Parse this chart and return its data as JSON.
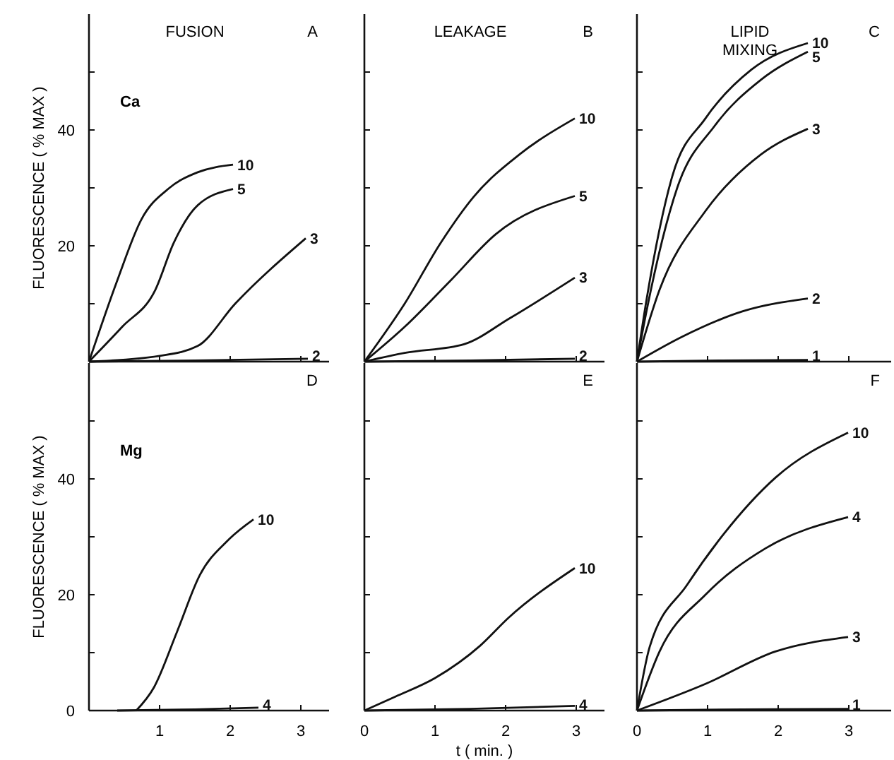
{
  "chart_data": [
    {
      "type": "line",
      "title": "FUSION",
      "ylabel": "FLUORESCENCE ( % MAX )",
      "annotations": [
        "A",
        "Ca"
      ],
      "xlim": [
        0,
        3.4
      ],
      "ylim": [
        0,
        60
      ],
      "xticks": [
        0,
        1,
        2,
        3
      ],
      "yticks": [
        {
          "value": 0,
          "label": null
        },
        {
          "value": 10,
          "label": null
        },
        20,
        {
          "value": 30,
          "label": null
        },
        40,
        {
          "value": 50,
          "label": null
        }
      ],
      "tick_labels": "y",
      "line_style": "solid",
      "series": [
        {
          "name": "10",
          "color": "#111111",
          "x": [
            0,
            0.4,
            0.74,
            1.14,
            1.54,
            2.04
          ],
          "values": [
            0,
            14,
            24.5,
            30,
            32.7,
            34
          ]
        },
        {
          "name": "5",
          "color": "#111111",
          "x": [
            0,
            0.47,
            0.94,
            1.2,
            1.54,
            2.04
          ],
          "values": [
            0,
            6,
            12.4,
            20.5,
            27,
            29.8
          ]
        },
        {
          "name": "3",
          "color": "#111111",
          "x": [
            0,
            1.0,
            1.54,
            2.07,
            3.07
          ],
          "values": [
            0,
            1,
            2.7,
            10,
            21.3
          ]
        },
        {
          "name": "2",
          "color": "#111111",
          "x": [
            0,
            1.5,
            3.1
          ],
          "values": [
            0,
            0.2,
            0.5
          ]
        }
      ]
    },
    {
      "type": "line",
      "title": "LEAKAGE",
      "annotations": [
        "B"
      ],
      "xlim": [
        0,
        3.4
      ],
      "ylim": [
        0,
        60
      ],
      "xticks": [
        0,
        1,
        2,
        3
      ],
      "yticks": [
        0,
        10,
        20,
        30,
        40,
        50
      ],
      "tick_labels": false,
      "line_style": "solid",
      "series": [
        {
          "name": "10",
          "color": "#111111",
          "x": [
            0,
            0.57,
            1.08,
            1.55,
            2.2,
            2.98
          ],
          "values": [
            0,
            10,
            20.5,
            28.5,
            35.8,
            42
          ]
        },
        {
          "name": "5",
          "color": "#111111",
          "x": [
            0,
            0.57,
            1.22,
            1.86,
            2.98
          ],
          "values": [
            0,
            6,
            14,
            22,
            28.6
          ]
        },
        {
          "name": "3",
          "color": "#111111",
          "x": [
            0,
            0.57,
            1.41,
            2.06,
            2.98
          ],
          "values": [
            0,
            1.5,
            3,
            7.5,
            14.5
          ]
        },
        {
          "name": "2",
          "color": "#111111",
          "x": [
            0,
            1.5,
            2.98
          ],
          "values": [
            0,
            0.2,
            0.5
          ]
        }
      ]
    },
    {
      "type": "line",
      "title": "LIPID MIXING",
      "annotations": [
        "C"
      ],
      "xlim": [
        0,
        3.6
      ],
      "ylim": [
        0,
        60
      ],
      "xticks": [
        0,
        1,
        2,
        3
      ],
      "yticks": [
        0,
        10,
        20,
        30,
        40,
        50
      ],
      "tick_labels": false,
      "line_style": "solid",
      "series": [
        {
          "name": "10",
          "color": "#111111",
          "x": [
            0,
            0.14,
            0.5,
            0.97,
            1.62,
            2.42
          ],
          "values": [
            0,
            11,
            32,
            42,
            50.4,
            55
          ]
        },
        {
          "name": "5",
          "color": "#111111",
          "x": [
            0,
            0.14,
            0.57,
            1.1,
            1.76,
            2.42
          ],
          "values": [
            0,
            9,
            30,
            40.7,
            48.7,
            53.5
          ]
        },
        {
          "name": "3",
          "color": "#111111",
          "x": [
            0,
            0.32,
            0.97,
            1.76,
            2.42
          ],
          "values": [
            0,
            12.4,
            26,
            35.8,
            40.2
          ]
        },
        {
          "name": "2",
          "color": "#111111",
          "x": [
            0,
            0.64,
            1.5,
            2.42
          ],
          "values": [
            0,
            4.3,
            8.7,
            10.9
          ]
        },
        {
          "name": "1",
          "color": "#111111",
          "x": [
            0,
            1.2,
            2.42
          ],
          "values": [
            0,
            0.2,
            0.3
          ]
        }
      ]
    },
    {
      "type": "line",
      "ylabel": "FLUORESCENCE ( % MAX )",
      "annotations": [
        "D",
        "Mg"
      ],
      "xlim": [
        0,
        3.4
      ],
      "ylim": [
        0,
        60
      ],
      "xticks": [
        1,
        2,
        3
      ],
      "yticks": [
        0,
        {
          "value": 10,
          "label": null
        },
        20,
        {
          "value": 30,
          "label": null
        },
        40,
        {
          "value": 50,
          "label": null
        }
      ],
      "line_style": "solid",
      "series": [
        {
          "name": "10",
          "color": "#111111",
          "x": [
            0.67,
            0.92,
            1.25,
            1.57,
            1.96,
            2.33
          ],
          "values": [
            0,
            4,
            13.7,
            23.4,
            29.3,
            33
          ]
        },
        {
          "name": "4",
          "color": "#111111",
          "x": [
            0.4,
            1.5,
            2.4
          ],
          "values": [
            0,
            0.2,
            0.5
          ]
        }
      ]
    },
    {
      "type": "line",
      "xlabel": "t ( min. )",
      "annotations": [
        "E"
      ],
      "xlim": [
        0,
        3.4
      ],
      "ylim": [
        0,
        60
      ],
      "xticks": [
        0,
        1,
        2,
        3
      ],
      "yticks": [
        0,
        10,
        20,
        30,
        40,
        50
      ],
      "tick_labels": "x",
      "line_style": "solid",
      "series": [
        {
          "name": "10",
          "color": "#111111",
          "x": [
            0,
            0.44,
            1.0,
            1.64,
            2.04,
            2.98
          ],
          "values": [
            0,
            2.4,
            5.6,
            11.2,
            16,
            24.6
          ]
        },
        {
          "name": "4",
          "color": "#111111",
          "x": [
            0,
            1.5,
            2.98
          ],
          "values": [
            0,
            0.3,
            0.8
          ]
        }
      ]
    },
    {
      "type": "line",
      "annotations": [
        "F"
      ],
      "xlim": [
        0,
        3.6
      ],
      "ylim": [
        0,
        60
      ],
      "xticks": [
        0,
        1,
        2,
        3
      ],
      "yticks": [
        0,
        10,
        20,
        30,
        40,
        50
      ],
      "tick_labels": "x",
      "line_style": "solid",
      "series": [
        {
          "name": "10",
          "color": "#111111",
          "x": [
            0,
            0.18,
            0.71,
            1.23,
            1.96,
            2.99
          ],
          "values": [
            0,
            11,
            21.7,
            30.5,
            40.2,
            48
          ]
        },
        {
          "name": "4",
          "color": "#111111",
          "x": [
            0,
            0.32,
            0.97,
            1.82,
            2.99
          ],
          "values": [
            0,
            10.2,
            20,
            28,
            33.4
          ]
        },
        {
          "name": "3",
          "color": "#111111",
          "x": [
            0,
            0.97,
            1.96,
            2.99
          ],
          "values": [
            0,
            4.6,
            10.2,
            12.7
          ]
        },
        {
          "name": "1",
          "color": "#111111",
          "x": [
            0,
            1.5,
            2.99
          ],
          "values": [
            0,
            0.2,
            0.3
          ]
        }
      ]
    }
  ]
}
